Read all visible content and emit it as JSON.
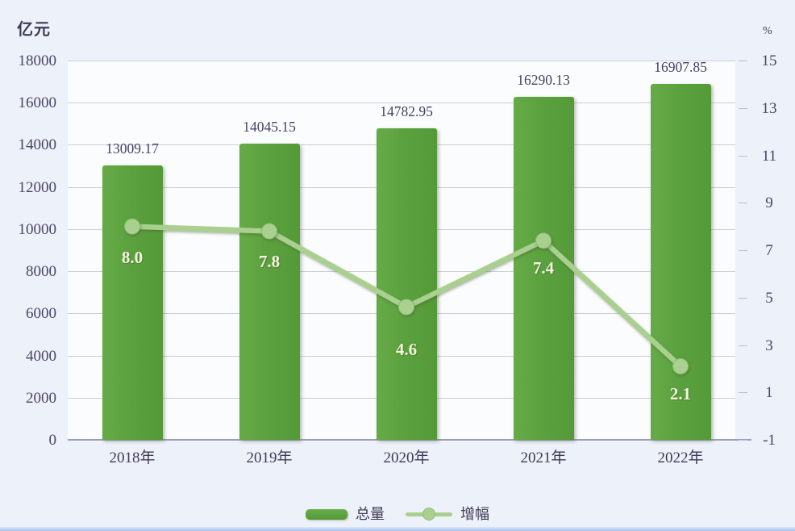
{
  "chart_data": {
    "type": "bar+line combo",
    "categories": [
      "2018年",
      "2019年",
      "2020年",
      "2021年",
      "2022年"
    ],
    "series": [
      {
        "name": "总量",
        "type": "bar",
        "axis": "left",
        "values": [
          13009.17,
          14045.15,
          14782.95,
          16290.13,
          16907.85
        ],
        "labels": [
          "13009.17",
          "14045.15",
          "14782.95",
          "16290.13",
          "16907.85"
        ],
        "color": "#5ba13e"
      },
      {
        "name": "增幅",
        "type": "line",
        "axis": "right",
        "values": [
          8.0,
          7.8,
          4.6,
          7.4,
          2.1
        ],
        "labels": [
          "8.0",
          "7.8",
          "4.6",
          "7.4",
          "2.1"
        ],
        "color": "#a9d08e"
      }
    ],
    "left_axis": {
      "title": "亿元",
      "min": 0,
      "max": 18000,
      "step": 2000,
      "ticks": [
        "18000",
        "16000",
        "14000",
        "12000",
        "10000",
        "8000",
        "6000",
        "4000",
        "2000",
        "0"
      ]
    },
    "right_axis": {
      "title": "%",
      "min": -1,
      "max": 15,
      "step": 2,
      "ticks": [
        "15",
        "13",
        "11",
        "9",
        "7",
        "5",
        "3",
        "1",
        "-1"
      ]
    },
    "legend": [
      {
        "label": "总量",
        "swatch": "bar"
      },
      {
        "label": "增幅",
        "swatch": "line"
      }
    ],
    "grid": true,
    "legend_position": "bottom"
  },
  "colors": {
    "background": "#edf1f9",
    "plot_background": "#fbfcfe",
    "bar": "#5ba13e",
    "line": "#a9d08e",
    "text_dark": "#453f63",
    "line_label": "#f6f3e1",
    "gridline": "#c9cedb"
  }
}
